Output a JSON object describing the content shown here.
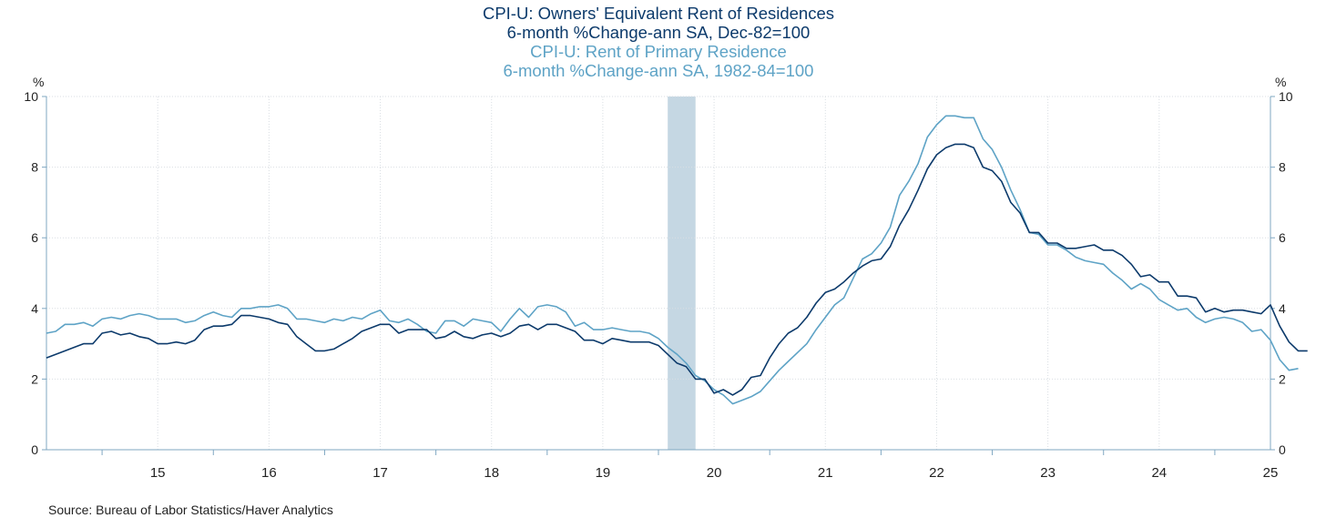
{
  "chart_data": {
    "type": "line",
    "title_lines": [
      {
        "text": "CPI-U: Owners' Equivalent Rent of Residences",
        "series": 0
      },
      {
        "text": "6-month %Change-ann      SA, Dec-82=100",
        "series": 0
      },
      {
        "text": "CPI-U: Rent of Primary Residence",
        "series": 1
      },
      {
        "text": "6-month %Change-ann      SA, 1982-84=100",
        "series": 1
      }
    ],
    "ylabel_left": "%",
    "ylabel_right": "%",
    "ylim": [
      0,
      10
    ],
    "yticks": [
      0,
      2,
      4,
      6,
      8,
      10
    ],
    "x_start": 2014.5,
    "x_end": 2025.5,
    "xticks": [
      {
        "label": "15",
        "year": 2015
      },
      {
        "label": "16",
        "year": 2016
      },
      {
        "label": "17",
        "year": 2017
      },
      {
        "label": "18",
        "year": 2018
      },
      {
        "label": "19",
        "year": 2019
      },
      {
        "label": "20",
        "year": 2020
      },
      {
        "label": "21",
        "year": 2021
      },
      {
        "label": "22",
        "year": 2022
      },
      {
        "label": "23",
        "year": 2023
      },
      {
        "label": "24",
        "year": 2024
      },
      {
        "label": "25",
        "year": 2025
      }
    ],
    "grid": true,
    "recession": {
      "start": "2020-02",
      "end": "2020-04"
    },
    "source": "Source:  Bureau of Labor Statistics/Haver Analytics",
    "colors": {
      "series0": "#0c3a6b",
      "series1": "#5ea3c6",
      "recession": "#c5d7e3",
      "axis": "#7fa7c2",
      "grid": "#d9dee3",
      "tick_text": "#222222"
    },
    "series": [
      {
        "name": "CPI-U: Owners' Equivalent Rent of Residences",
        "start": "2014-07",
        "values": [
          2.6,
          2.7,
          2.8,
          2.9,
          3.0,
          3.0,
          3.3,
          3.35,
          3.25,
          3.3,
          3.2,
          3.15,
          3.0,
          3.0,
          3.05,
          3.0,
          3.1,
          3.4,
          3.5,
          3.5,
          3.55,
          3.8,
          3.8,
          3.75,
          3.7,
          3.6,
          3.55,
          3.2,
          3.0,
          2.8,
          2.8,
          2.85,
          3.0,
          3.15,
          3.35,
          3.45,
          3.55,
          3.55,
          3.3,
          3.4,
          3.4,
          3.4,
          3.15,
          3.2,
          3.35,
          3.2,
          3.15,
          3.25,
          3.3,
          3.2,
          3.3,
          3.5,
          3.55,
          3.4,
          3.55,
          3.55,
          3.45,
          3.35,
          3.1,
          3.1,
          3.0,
          3.15,
          3.1,
          3.05,
          3.05,
          3.05,
          2.95,
          2.7,
          2.45,
          2.35,
          2.0,
          2.0,
          1.6,
          1.7,
          1.55,
          1.7,
          2.05,
          2.1,
          2.6,
          3.0,
          3.3,
          3.45,
          3.75,
          4.15,
          4.45,
          4.55,
          4.75,
          5.0,
          5.2,
          5.35,
          5.4,
          5.75,
          6.35,
          6.8,
          7.35,
          7.95,
          8.35,
          8.55,
          8.65,
          8.65,
          8.55,
          8.0,
          7.9,
          7.6,
          7.0,
          6.7,
          6.15,
          6.15,
          5.85,
          5.85,
          5.7,
          5.7,
          5.75,
          5.8,
          5.65,
          5.65,
          5.5,
          5.25,
          4.9,
          4.95,
          4.75,
          4.75,
          4.35,
          4.35,
          4.3,
          3.9,
          4.0,
          3.9,
          3.95,
          3.95,
          3.9,
          3.85,
          4.1,
          3.5,
          3.05,
          2.8,
          2.8
        ]
      },
      {
        "name": "CPI-U: Rent of Primary Residence",
        "start": "2014-07",
        "values": [
          3.3,
          3.35,
          3.55,
          3.55,
          3.6,
          3.5,
          3.7,
          3.75,
          3.7,
          3.8,
          3.85,
          3.8,
          3.7,
          3.7,
          3.7,
          3.6,
          3.65,
          3.8,
          3.9,
          3.8,
          3.75,
          4.0,
          4.0,
          4.05,
          4.05,
          4.1,
          4.0,
          3.7,
          3.7,
          3.65,
          3.6,
          3.7,
          3.65,
          3.75,
          3.7,
          3.85,
          3.95,
          3.65,
          3.6,
          3.7,
          3.55,
          3.35,
          3.3,
          3.65,
          3.65,
          3.5,
          3.7,
          3.65,
          3.6,
          3.35,
          3.7,
          4.0,
          3.75,
          4.05,
          4.1,
          4.05,
          3.9,
          3.5,
          3.6,
          3.4,
          3.4,
          3.45,
          3.4,
          3.35,
          3.35,
          3.3,
          3.15,
          2.9,
          2.7,
          2.45,
          2.1,
          1.95,
          1.7,
          1.55,
          1.3,
          1.4,
          1.5,
          1.65,
          1.95,
          2.25,
          2.5,
          2.75,
          3.0,
          3.4,
          3.75,
          4.1,
          4.3,
          4.85,
          5.4,
          5.55,
          5.85,
          6.3,
          7.2,
          7.6,
          8.1,
          8.85,
          9.2,
          9.45,
          9.45,
          9.4,
          9.4,
          8.8,
          8.5,
          8.0,
          7.35,
          6.8,
          6.15,
          6.1,
          5.8,
          5.8,
          5.65,
          5.45,
          5.35,
          5.3,
          5.25,
          5.0,
          4.8,
          4.55,
          4.7,
          4.55,
          4.25,
          4.1,
          3.95,
          4.0,
          3.75,
          3.6,
          3.7,
          3.75,
          3.7,
          3.6,
          3.35,
          3.4,
          3.1,
          2.55,
          2.25,
          2.3
        ]
      }
    ]
  }
}
